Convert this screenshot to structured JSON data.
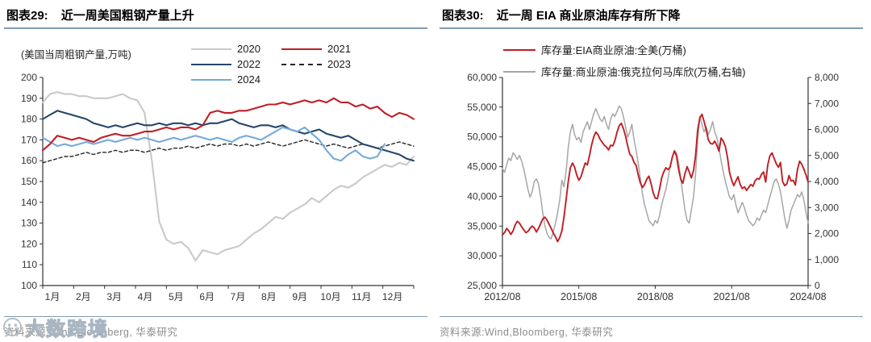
{
  "watermark": {
    "text": "大数跨境",
    "logo": "smiley-circle-icon"
  },
  "colors": {
    "header_rule": "#7f9bb3",
    "axis": "#333333",
    "tick_label": "#333333",
    "source_text": "#8c8c8c",
    "red": "#bf1e24",
    "dark_blue": "#24466b",
    "light_blue": "#74a9dc",
    "light_gray": "#c9c9c9",
    "mid_gray": "#a6a6a6",
    "dashed_black": "#262626"
  },
  "panels": [
    {
      "title_prefix": "图表29:",
      "title": "近一周美国粗钢产量上升",
      "unit_label": "(美国当周粗钢产量,万吨)",
      "source": "资料来源:Wind,Bloomberg, 华泰研究"
    },
    {
      "title_prefix": "图表30:",
      "title": "近一周 EIA 商业原油库存有所下降",
      "source": "资料来源:Wind,Bloomberg, 华泰研究"
    }
  ],
  "chart_data": [
    {
      "type": "line",
      "title": "近一周美国粗钢产量上升",
      "ylabel": "(美国当周粗钢产量,万吨)",
      "x_unit": "week of year (1-52)",
      "xticklabels": [
        "1月",
        "2月",
        "3月",
        "4月",
        "5月",
        "6月",
        "7月",
        "8月",
        "9月",
        "10月",
        "11月",
        "12月"
      ],
      "ylim": [
        100,
        200
      ],
      "ytick_step": 10,
      "grid": false,
      "legend_position": "top-right, 2 columns",
      "series": [
        {
          "name": "2020",
          "color": "#c9c9c9",
          "style": "solid",
          "values": [
            188,
            192,
            193,
            192,
            192,
            191,
            191,
            190,
            190,
            190,
            191,
            192,
            190,
            189,
            183,
            160,
            131,
            122,
            120,
            121,
            118,
            112,
            117,
            116,
            115,
            117,
            118,
            119,
            122,
            125,
            127,
            130,
            133,
            132,
            135,
            137,
            139,
            142,
            140,
            143,
            146,
            148,
            147,
            149,
            152,
            154,
            156,
            158,
            157,
            159,
            158,
            162
          ]
        },
        {
          "name": "2021",
          "color": "#bf1e24",
          "style": "solid",
          "values": [
            165,
            168,
            172,
            171,
            170,
            171,
            170,
            169,
            171,
            172,
            173,
            172,
            172,
            173,
            174,
            174,
            175,
            176,
            175,
            176,
            176,
            175,
            177,
            183,
            184,
            183,
            183,
            184,
            184,
            185,
            186,
            187,
            187,
            188,
            187,
            188,
            189,
            188,
            189,
            188,
            190,
            188,
            188,
            186,
            187,
            185,
            186,
            183,
            181,
            183,
            182,
            180
          ]
        },
        {
          "name": "2022",
          "color": "#24466b",
          "style": "solid",
          "values": [
            180,
            182,
            184,
            183,
            182,
            181,
            180,
            178,
            177,
            176,
            177,
            176,
            177,
            178,
            177,
            177,
            178,
            177,
            178,
            178,
            177,
            178,
            177,
            178,
            178,
            179,
            180,
            178,
            177,
            176,
            177,
            177,
            176,
            177,
            175,
            174,
            173,
            174,
            175,
            173,
            172,
            171,
            172,
            170,
            168,
            167,
            166,
            165,
            164,
            163,
            161,
            160
          ]
        },
        {
          "name": "2023",
          "color": "#262626",
          "style": "dashed",
          "values": [
            159,
            160,
            161,
            162,
            162,
            163,
            164,
            163,
            164,
            164,
            165,
            164,
            165,
            165,
            164,
            165,
            166,
            165,
            166,
            166,
            167,
            166,
            167,
            168,
            167,
            168,
            168,
            167,
            168,
            167,
            168,
            169,
            168,
            167,
            168,
            169,
            170,
            169,
            168,
            167,
            168,
            167,
            166,
            167,
            168,
            167,
            166,
            167,
            168,
            169,
            168,
            167
          ]
        },
        {
          "name": "2024",
          "color": "#74a9dc",
          "style": "solid",
          "values": [
            171,
            169,
            167,
            168,
            167,
            168,
            169,
            168,
            169,
            170,
            169,
            170,
            171,
            170,
            171,
            170,
            169,
            170,
            171,
            170,
            171,
            172,
            171,
            170,
            171,
            170,
            169,
            171,
            172,
            171,
            170,
            172,
            174,
            176,
            175,
            174,
            176,
            173,
            170,
            165,
            161,
            160,
            163,
            165,
            162,
            161,
            162,
            168
          ]
        }
      ]
    },
    {
      "type": "line",
      "title": "近一周 EIA 商业原油库存有所下降",
      "x_unit": "monthly, 2012/08 - 2024/08",
      "xticklabels": [
        "2012/08",
        "2015/08",
        "2018/08",
        "2021/08",
        "2024/08"
      ],
      "xtick_month_index": [
        0,
        36,
        72,
        108,
        144
      ],
      "ylim_left": [
        25000,
        60000
      ],
      "ytick_step_left": 5000,
      "ylim_right": [
        0,
        8000
      ],
      "ytick_step_right": 1000,
      "grid": false,
      "legend_position": "top-left, stacked",
      "series": [
        {
          "name": "库存量:EIA商业原油:全美(万桶)",
          "axis": "left",
          "color": "#bf1e24",
          "style": "solid",
          "values": [
            33500,
            33900,
            34600,
            34200,
            33600,
            34200,
            35200,
            35800,
            35500,
            34900,
            34400,
            33900,
            34100,
            34600,
            35000,
            34700,
            34000,
            34600,
            35400,
            36200,
            36500,
            36000,
            35300,
            34600,
            33800,
            33200,
            32400,
            33100,
            34200,
            36500,
            39500,
            42500,
            44800,
            45600,
            44900,
            43600,
            42700,
            43300,
            44500,
            45600,
            45300,
            46800,
            48600,
            50000,
            50800,
            50400,
            49600,
            49100,
            48600,
            48300,
            47800,
            48600,
            48500,
            49400,
            50800,
            51900,
            52300,
            51400,
            50100,
            48500,
            47100,
            46700,
            45700,
            45200,
            43600,
            42200,
            41500,
            42000,
            42900,
            43400,
            42200,
            40600,
            39700,
            39600,
            41200,
            43100,
            44100,
            44800,
            44500,
            44900,
            46600,
            47600,
            46800,
            44500,
            42900,
            42200,
            43800,
            45000,
            44100,
            43100,
            44300,
            46900,
            51200,
            53200,
            53800,
            52600,
            51200,
            49500,
            48900,
            48800,
            49300,
            48600,
            47600,
            49800,
            49300,
            48400,
            46600,
            44000,
            42700,
            41800,
            42600,
            43300,
            42000,
            41300,
            41600,
            41000,
            41500,
            42000,
            41700,
            42600,
            43000,
            42900,
            43700,
            44100,
            42400,
            45300,
            46800,
            47300,
            46400,
            45500,
            44900,
            45700,
            42500,
            41800,
            42100,
            43500,
            42600,
            42700,
            41900,
            44500,
            45900,
            45400,
            44600,
            43600,
            42400
          ]
        },
        {
          "name": "库存量:商业原油:俄克拉何马库欣(万桶,右轴)",
          "axis": "right",
          "color": "#a6a6a6",
          "style": "solid",
          "values": [
            4500,
            4350,
            4650,
            4900,
            4800,
            5100,
            5000,
            4850,
            5000,
            4800,
            4500,
            4100,
            3700,
            3400,
            3600,
            4000,
            4100,
            3900,
            3400,
            2800,
            2300,
            2000,
            1850,
            1800,
            2100,
            2400,
            2800,
            3300,
            4050,
            3800,
            4400,
            5300,
            5900,
            6200,
            5800,
            5600,
            5700,
            5500,
            5900,
            6100,
            6300,
            6000,
            6300,
            6600,
            6800,
            6600,
            6400,
            6300,
            6500,
            6200,
            6000,
            6400,
            6600,
            6500,
            6700,
            6900,
            6800,
            6500,
            6100,
            5700,
            5900,
            6200,
            5600,
            5200,
            4700,
            4100,
            3500,
            3100,
            2800,
            2500,
            2400,
            2300,
            2500,
            2400,
            2700,
            3100,
            3400,
            3700,
            4100,
            4600,
            4900,
            5200,
            5100,
            4700,
            4100,
            3500,
            2900,
            2500,
            2400,
            2900,
            3400,
            4300,
            5600,
            6500,
            6200,
            5900,
            6100,
            5800,
            6000,
            6300,
            5900,
            5700,
            5300,
            4800,
            4400,
            4000,
            3700,
            3400,
            3300,
            3500,
            3100,
            2800,
            3000,
            3200,
            3000,
            2700,
            2500,
            2400,
            2300,
            2400,
            2600,
            2500,
            2700,
            2900,
            2800,
            3100,
            3400,
            3700,
            4000,
            4100,
            3900,
            3600,
            3100,
            2600,
            2200,
            2500,
            2900,
            3100,
            3300,
            3500,
            3400,
            3600,
            3300,
            2800,
            2400
          ]
        }
      ]
    }
  ]
}
